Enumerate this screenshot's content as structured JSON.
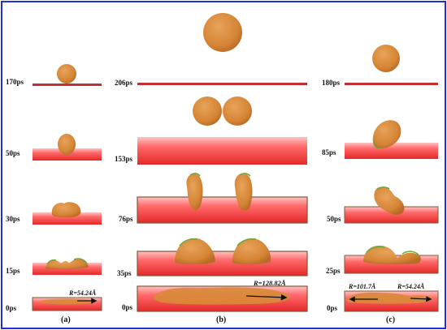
{
  "columns": [
    {
      "label": "(a)",
      "times": [
        "170ps",
        "50ps",
        "30ps",
        "15ps",
        "0ps"
      ],
      "radius_labels": [
        "R=54.24Å"
      ]
    },
    {
      "label": "(b)",
      "times": [
        "206ps",
        "153ps",
        "76ps",
        "35ps",
        "0ps"
      ],
      "radius_labels": [
        "R=128.82Å"
      ]
    },
    {
      "label": "(c)",
      "times": [
        "180ps",
        "85ps",
        "50ps",
        "25ps",
        "0ps"
      ],
      "radius_labels": [
        "R=101.7Å",
        "R=54.24Å"
      ]
    }
  ],
  "colors": {
    "frame_border": "#1f2fd6",
    "droplet": "#d98a3a",
    "droplet_edge": "#b8651f",
    "substrate_top": "#ffb3b3",
    "substrate_mid": "#ff5959",
    "substrate_bottom": "#e62a2a",
    "substrate_edge": "#7a5a3a",
    "wetting_green": "#6aa83e"
  }
}
